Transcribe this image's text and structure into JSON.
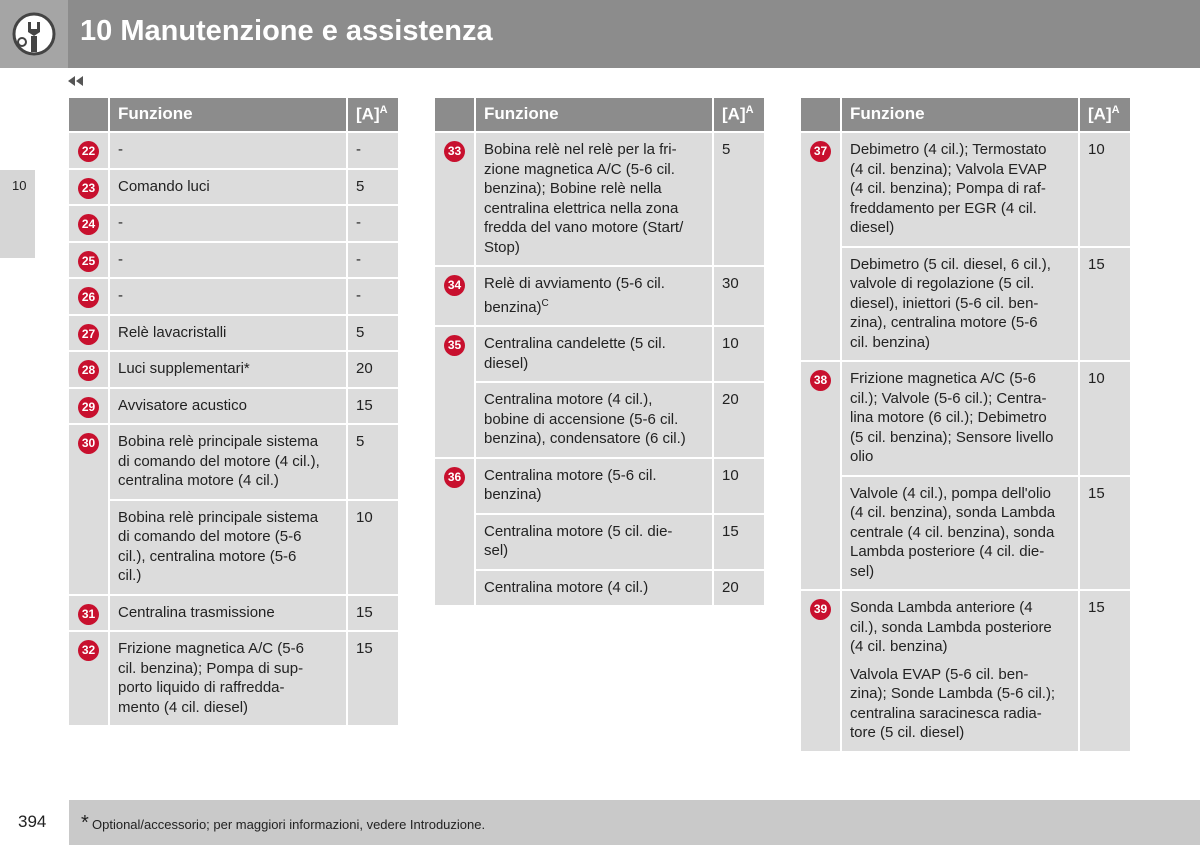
{
  "header": {
    "title": "10 Manutenzione e assistenza",
    "tab": "10"
  },
  "tables": [
    {
      "head": {
        "function": "Funzione",
        "amp": "[A]",
        "amp_sup": "A"
      },
      "rows": [
        {
          "number": "22",
          "entries": [
            {
              "text": "-",
              "amp": "-"
            }
          ]
        },
        {
          "number": "23",
          "entries": [
            {
              "text": "Comando luci",
              "amp": "5"
            }
          ]
        },
        {
          "number": "24",
          "entries": [
            {
              "text": "-",
              "amp": "-"
            }
          ]
        },
        {
          "number": "25",
          "entries": [
            {
              "text": "-",
              "amp": "-"
            }
          ]
        },
        {
          "number": "26",
          "entries": [
            {
              "text": "-",
              "amp": "-"
            }
          ]
        },
        {
          "number": "27",
          "entries": [
            {
              "text": "Relè lavacristalli",
              "amp": "5"
            }
          ]
        },
        {
          "number": "28",
          "entries": [
            {
              "text": "Luci supplementari*",
              "amp": "20"
            }
          ]
        },
        {
          "number": "29",
          "entries": [
            {
              "text": "Avvisatore acustico",
              "amp": "15"
            }
          ]
        },
        {
          "number": "30",
          "entries": [
            {
              "text": "Bobina relè principale sistema\ndi comando del motore (4 cil.),\ncentralina motore (4 cil.)",
              "amp": "5"
            },
            {
              "text": "Bobina relè principale sistema\ndi comando del motore (5-6\ncil.), centralina motore (5-6\ncil.)",
              "amp": "10"
            }
          ]
        },
        {
          "number": "31",
          "entries": [
            {
              "text": "Centralina trasmissione",
              "amp": "15"
            }
          ]
        },
        {
          "number": "32",
          "entries": [
            {
              "text": "Frizione magnetica A/C (5-6\ncil. benzina); Pompa di sup-\nporto liquido di raffredda-\nmento (4 cil. diesel)",
              "amp": "15"
            }
          ]
        }
      ]
    },
    {
      "head": {
        "function": "Funzione",
        "amp": "[A]",
        "amp_sup": "A"
      },
      "rows": [
        {
          "number": "33",
          "entries": [
            {
              "text": "Bobina relè nel relè per la fri-\nzione magnetica A/C (5-6 cil.\nbenzina); Bobine relè nella\ncentralina elettrica nella zona\nfredda del vano motore (Start/\nStop)",
              "amp": "5"
            }
          ]
        },
        {
          "number": "34",
          "entries": [
            {
              "text": "Relè di avviamento (5-6 cil.\nbenzina)",
              "sup": "C",
              "amp": "30"
            }
          ]
        },
        {
          "number": "35",
          "entries": [
            {
              "text": "Centralina candelette (5 cil.\ndiesel)",
              "amp": "10"
            },
            {
              "text": "Centralina motore (4 cil.),\nbobine di accensione (5-6 cil.\nbenzina), condensatore (6 cil.)",
              "amp": "20"
            }
          ]
        },
        {
          "number": "36",
          "entries": [
            {
              "text": "Centralina motore (5-6 cil.\nbenzina)",
              "amp": "10"
            },
            {
              "text": "Centralina motore (5 cil. die-\nsel)",
              "amp": "15"
            },
            {
              "text": "Centralina motore (4 cil.)",
              "amp": "20"
            }
          ]
        }
      ]
    },
    {
      "head": {
        "function": "Funzione",
        "amp": "[A]",
        "amp_sup": "A"
      },
      "rows": [
        {
          "number": "37",
          "entries": [
            {
              "text": "Debimetro (4 cil.); Termostato\n(4 cil. benzina); Valvola EVAP\n(4 cil. benzina); Pompa di raf-\nfreddamento per EGR (4 cil.\ndiesel)",
              "amp": "10"
            },
            {
              "text": "Debimetro (5 cil. diesel, 6 cil.),\nvalvole di regolazione (5 cil.\ndiesel), iniettori (5-6 cil. ben-\nzina), centralina motore (5-6\ncil. benzina)",
              "amp": "15"
            }
          ]
        },
        {
          "number": "38",
          "entries": [
            {
              "text": "Frizione magnetica A/C (5-6\ncil.); Valvole (5-6 cil.); Centra-\nlina motore (6 cil.); Debimetro\n(5 cil. benzina); Sensore livello\nolio",
              "amp": "10"
            },
            {
              "text": "Valvole (4 cil.), pompa dell'olio\n(4 cil. benzina), sonda Lambda\ncentrale (4 cil. benzina), sonda\nLambda posteriore (4 cil. die-\nsel)",
              "amp": "15"
            }
          ]
        },
        {
          "number": "39",
          "entries": [
            {
              "text": "Sonda Lambda anteriore (4\ncil.), sonda Lambda posteriore\n(4 cil. benzina)",
              "text2": "Valvola EVAP (5-6 cil. ben-\nzina); Sonde Lambda (5-6 cil.);\ncentralina saracinesca radia-\ntore (5 cil. diesel)",
              "amp": "15"
            }
          ]
        }
      ]
    }
  ],
  "footer": {
    "page": "394",
    "marker": "*",
    "note": "Optional/accessorio; per maggiori informazioni, vedere Introduzione."
  }
}
